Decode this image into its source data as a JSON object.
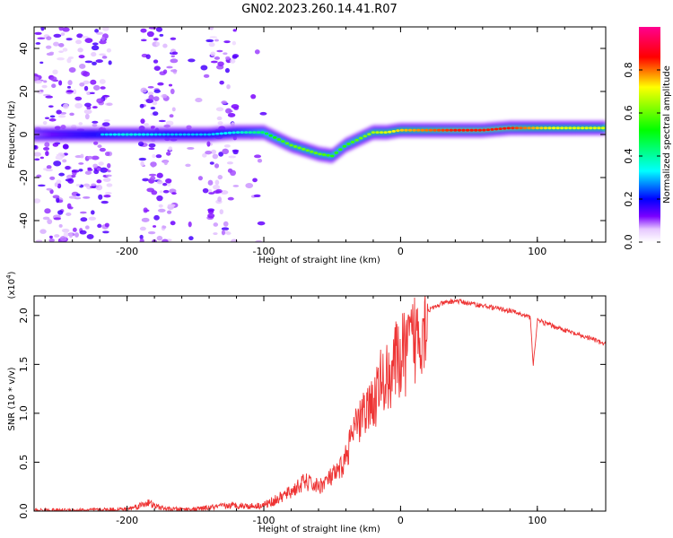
{
  "figure_title": "GN02.2023.260.14.41.R07",
  "chart_data": [
    {
      "type": "heatmap",
      "panel": "spectrogram",
      "xlabel": "Height of straight line (km)",
      "ylabel": "Frequency (Hz)",
      "xlim": [
        -268,
        150
      ],
      "ylim": [
        -50,
        50
      ],
      "x_ticks": [
        -200,
        -100,
        0,
        100
      ],
      "x_tick_labels": [
        "-200",
        "-100",
        "0",
        "100"
      ],
      "y_ticks": [
        -40,
        -20,
        0,
        20,
        40
      ],
      "y_tick_labels": [
        "-40",
        "-20",
        "0",
        "20",
        "40"
      ],
      "colorscale": [
        "#ffffff",
        "#e6c8ff",
        "#7a00ff",
        "#0000ff",
        "#00ffff",
        "#00ff00",
        "#ffff00",
        "#ff0000",
        "#ff00a0"
      ],
      "ridge": {
        "x": [
          -260,
          -220,
          -200,
          -170,
          -140,
          -120,
          -100,
          -90,
          -80,
          -70,
          -60,
          -50,
          -40,
          -30,
          -20,
          -10,
          0,
          20,
          40,
          60,
          80,
          100,
          120,
          150
        ],
        "y": [
          0,
          0,
          0,
          0,
          0,
          1,
          1,
          -2,
          -5,
          -7,
          -9,
          -10,
          -5,
          -2,
          1,
          1,
          2,
          2,
          2,
          2,
          3,
          3,
          3,
          3
        ],
        "amplitude": [
          0.15,
          0.3,
          0.35,
          0.3,
          0.3,
          0.35,
          0.45,
          0.55,
          0.6,
          0.6,
          0.6,
          0.55,
          0.55,
          0.6,
          0.65,
          0.7,
          0.75,
          0.8,
          0.85,
          0.85,
          0.85,
          0.75,
          0.7,
          0.7
        ]
      },
      "colorbar": {
        "label": "Normalized spectral amplitude",
        "range": [
          0,
          1
        ],
        "ticks": [
          0.0,
          0.2,
          0.4,
          0.6,
          0.8
        ],
        "tick_labels": [
          "0.0",
          "0.2",
          "0.4",
          "0.6",
          "0.8"
        ]
      }
    },
    {
      "type": "line",
      "panel": "snr",
      "xlabel": "Height of straight line (km)",
      "ylabel": "SNR (10 * v/v)",
      "y_multiplier": "(x10",
      "y_multiplier_exp": "4",
      "y_multiplier_close": ")",
      "xlim": [
        -268,
        150
      ],
      "ylim": [
        0,
        2.2
      ],
      "x_ticks": [
        -200,
        -100,
        0,
        100
      ],
      "x_tick_labels": [
        "-200",
        "-100",
        "0",
        "100"
      ],
      "y_ticks": [
        0.0,
        0.5,
        1.0,
        1.5,
        2.0
      ],
      "y_tick_labels": [
        "0.0",
        "0.5",
        "1.0",
        "1.5",
        "2.0"
      ],
      "color": "#ee3333",
      "series": [
        {
          "x": [
            -268,
            -230,
            -200,
            -190,
            -185,
            -180,
            -170,
            -150,
            -130,
            -120,
            -110,
            -100,
            -90,
            -80,
            -70,
            -60,
            -50,
            -45,
            -40,
            -35,
            -30,
            -25,
            -20,
            -15,
            -10,
            -5,
            0,
            10,
            20,
            30,
            40,
            60,
            80,
            90,
            95,
            97,
            100,
            110,
            120,
            130,
            140,
            150
          ],
          "y": [
            0.01,
            0.01,
            0.02,
            0.06,
            0.09,
            0.05,
            0.02,
            0.02,
            0.05,
            0.06,
            0.05,
            0.06,
            0.12,
            0.2,
            0.3,
            0.25,
            0.35,
            0.4,
            0.55,
            0.8,
            0.9,
            1.05,
            1.1,
            1.3,
            1.35,
            1.5,
            1.55,
            1.75,
            2.05,
            2.12,
            2.15,
            2.1,
            2.05,
            2.0,
            1.98,
            1.48,
            1.95,
            1.9,
            1.85,
            1.8,
            1.76,
            1.7
          ]
        }
      ]
    }
  ]
}
